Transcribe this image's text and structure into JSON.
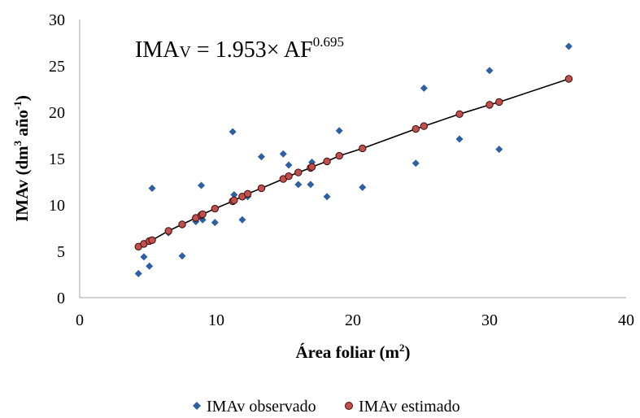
{
  "chart_data": {
    "type": "scatter",
    "title": "",
    "xlabel": "Área foliar (m²)",
    "xlabel_parts": {
      "main": "Área foliar (m",
      "sup": "2",
      "end": ")"
    },
    "ylabel": "IMAv (dm³ año⁻¹)",
    "ylabel_parts": {
      "a": "IMAv (dm",
      "sup1": "3",
      "b": " año",
      "sup2": "-1",
      "c": ")"
    },
    "xlim": [
      0,
      40
    ],
    "ylim": [
      0,
      30
    ],
    "x_ticks": [
      "0",
      "10",
      "20",
      "30",
      "40"
    ],
    "y_ticks": [
      "0",
      "5",
      "10",
      "15",
      "20",
      "25",
      "30"
    ],
    "grid": false,
    "legend_position": "bottom",
    "equation": {
      "lhs": "IMA",
      "sub": "V",
      "rhs": " = 1.953× AF",
      "exp": "0.695"
    },
    "colors": {
      "observed": "#2e5fa3",
      "estimated": "#c0504d",
      "line": "#000000"
    },
    "series": [
      {
        "name": "IMAv observado",
        "marker": "diamond",
        "points": [
          [
            4.3,
            2.6
          ],
          [
            4.7,
            4.4
          ],
          [
            5.1,
            3.4
          ],
          [
            5.3,
            11.8
          ],
          [
            6.5,
            7.0
          ],
          [
            7.5,
            4.5
          ],
          [
            8.5,
            8.2
          ],
          [
            8.9,
            12.1
          ],
          [
            9.0,
            8.4
          ],
          [
            9.9,
            8.1
          ],
          [
            11.2,
            17.9
          ],
          [
            11.3,
            11.1
          ],
          [
            11.9,
            8.4
          ],
          [
            12.3,
            10.9
          ],
          [
            13.3,
            15.2
          ],
          [
            14.9,
            15.5
          ],
          [
            15.3,
            14.3
          ],
          [
            16.0,
            12.2
          ],
          [
            16.9,
            12.2
          ],
          [
            17.0,
            14.6
          ],
          [
            18.1,
            10.9
          ],
          [
            19.0,
            18.0
          ],
          [
            20.7,
            11.9
          ],
          [
            24.6,
            14.5
          ],
          [
            25.2,
            22.6
          ],
          [
            27.8,
            17.1
          ],
          [
            30.0,
            24.5
          ],
          [
            30.7,
            16.0
          ],
          [
            35.8,
            27.1
          ]
        ]
      },
      {
        "name": "IMAv estimado",
        "marker": "circle",
        "points": [
          [
            4.3,
            5.5
          ],
          [
            4.7,
            5.8
          ],
          [
            5.1,
            6.1
          ],
          [
            5.3,
            6.2
          ],
          [
            6.5,
            7.2
          ],
          [
            7.5,
            7.9
          ],
          [
            8.5,
            8.6
          ],
          [
            8.9,
            8.9
          ],
          [
            9.0,
            9.0
          ],
          [
            9.9,
            9.6
          ],
          [
            11.2,
            10.4
          ],
          [
            11.3,
            10.5
          ],
          [
            11.9,
            10.9
          ],
          [
            12.3,
            11.2
          ],
          [
            13.3,
            11.8
          ],
          [
            14.9,
            12.8
          ],
          [
            15.3,
            13.1
          ],
          [
            16.0,
            13.5
          ],
          [
            16.9,
            14.0
          ],
          [
            17.0,
            14.1
          ],
          [
            18.1,
            14.7
          ],
          [
            19.0,
            15.3
          ],
          [
            20.7,
            16.1
          ],
          [
            24.6,
            18.2
          ],
          [
            25.2,
            18.5
          ],
          [
            27.8,
            19.8
          ],
          [
            30.0,
            20.8
          ],
          [
            30.7,
            21.1
          ],
          [
            35.8,
            23.6
          ]
        ]
      }
    ]
  }
}
